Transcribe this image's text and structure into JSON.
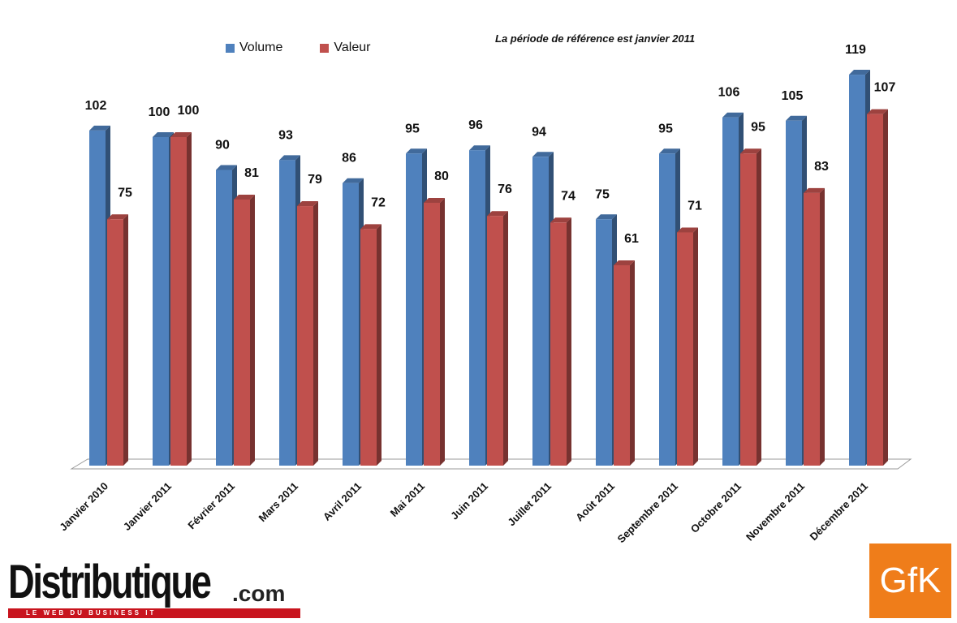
{
  "chart_data": {
    "type": "bar",
    "title": "",
    "subtitle": "La période de référence est janvier 2011",
    "xlabel": "",
    "ylabel": "",
    "ylim": [
      0,
      130
    ],
    "legend_position": "top-left",
    "grid": false,
    "categories": [
      "Janvier 2010",
      "Janvier 2011",
      "Février 2011",
      "Mars 2011",
      "Avril 2011",
      "Mai 2011",
      "Juin 2011",
      "Juillet 2011",
      "Août 2011",
      "Septembre 2011",
      "Octobre 2011",
      "Novembre 2011",
      "Décembre 2011"
    ],
    "series": [
      {
        "name": "Volume",
        "color": "#4f81bd",
        "values": [
          102,
          100,
          90,
          93,
          86,
          95,
          96,
          94,
          75,
          95,
          106,
          105,
          119
        ]
      },
      {
        "name": "Valeur",
        "color": "#c0504d",
        "values": [
          75,
          100,
          81,
          79,
          72,
          80,
          76,
          74,
          61,
          71,
          95,
          83,
          107
        ]
      }
    ]
  },
  "branding": {
    "logo_text": "Distributique",
    "logo_suffix": ".com",
    "logo_tagline": "LE WEB DU BUSINESS IT",
    "source_logo": "GfK"
  }
}
